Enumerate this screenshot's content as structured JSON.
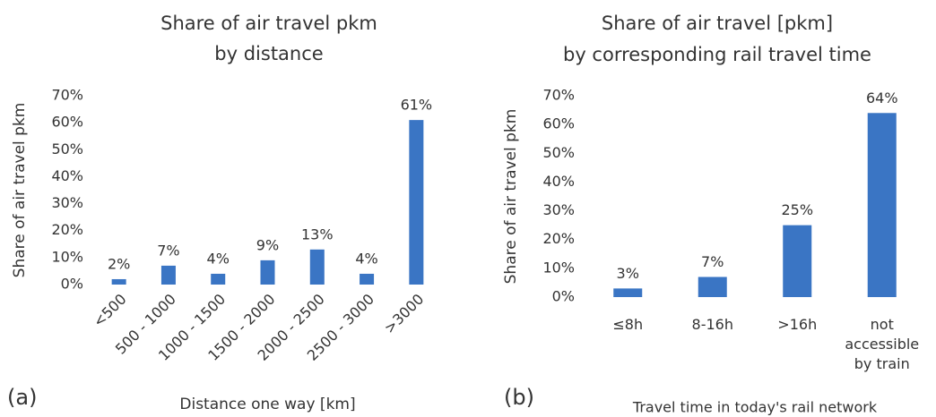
{
  "chart_data": [
    {
      "type": "bar",
      "panel_label": "(a)",
      "title": [
        "Share of air travel pkm",
        "by distance"
      ],
      "xlabel": "Distance one way [km]",
      "ylabel": "Share of air travel pkm",
      "categories": [
        "<500",
        "500 - 1000",
        "1000 - 1500",
        "1500 - 2000",
        "2000 - 2500",
        "2500 - 3000",
        ">3000"
      ],
      "values": [
        2,
        7,
        4,
        9,
        13,
        4,
        61
      ],
      "value_labels": [
        "2%",
        "7%",
        "4%",
        "9%",
        "13%",
        "4%",
        "61%"
      ],
      "color": "#3a75c4",
      "ylim": [
        0,
        70
      ],
      "yticks": [
        {
          "value": 0,
          "label": "0%"
        },
        {
          "value": 10,
          "label": "10%"
        },
        {
          "value": 20,
          "label": "20%"
        },
        {
          "value": 30,
          "label": "30%"
        },
        {
          "value": 40,
          "label": "40%"
        },
        {
          "value": 50,
          "label": "50%"
        },
        {
          "value": 60,
          "label": "60%"
        },
        {
          "value": 70,
          "label": "70%"
        }
      ],
      "grid": false
    },
    {
      "type": "bar",
      "panel_label": "(b)",
      "title": [
        "Share of air travel [pkm]",
        "by corresponding rail travel time"
      ],
      "xlabel": "Travel time in today's rail network",
      "ylabel": "Share of air travel pkm",
      "categories": [
        "≤8h",
        "8-16h",
        ">16h",
        "not accessible by train"
      ],
      "values": [
        3,
        7,
        25,
        64
      ],
      "value_labels": [
        "3%",
        "7%",
        "25%",
        "64%"
      ],
      "color": "#3a75c4",
      "ylim": [
        0,
        70
      ],
      "yticks": [
        {
          "value": 0,
          "label": "0%"
        },
        {
          "value": 10,
          "label": "10%"
        },
        {
          "value": 20,
          "label": "20%"
        },
        {
          "value": 30,
          "label": "30%"
        },
        {
          "value": 40,
          "label": "40%"
        },
        {
          "value": 50,
          "label": "50%"
        },
        {
          "value": 60,
          "label": "60%"
        },
        {
          "value": 70,
          "label": "70%"
        }
      ],
      "grid": false
    }
  ]
}
